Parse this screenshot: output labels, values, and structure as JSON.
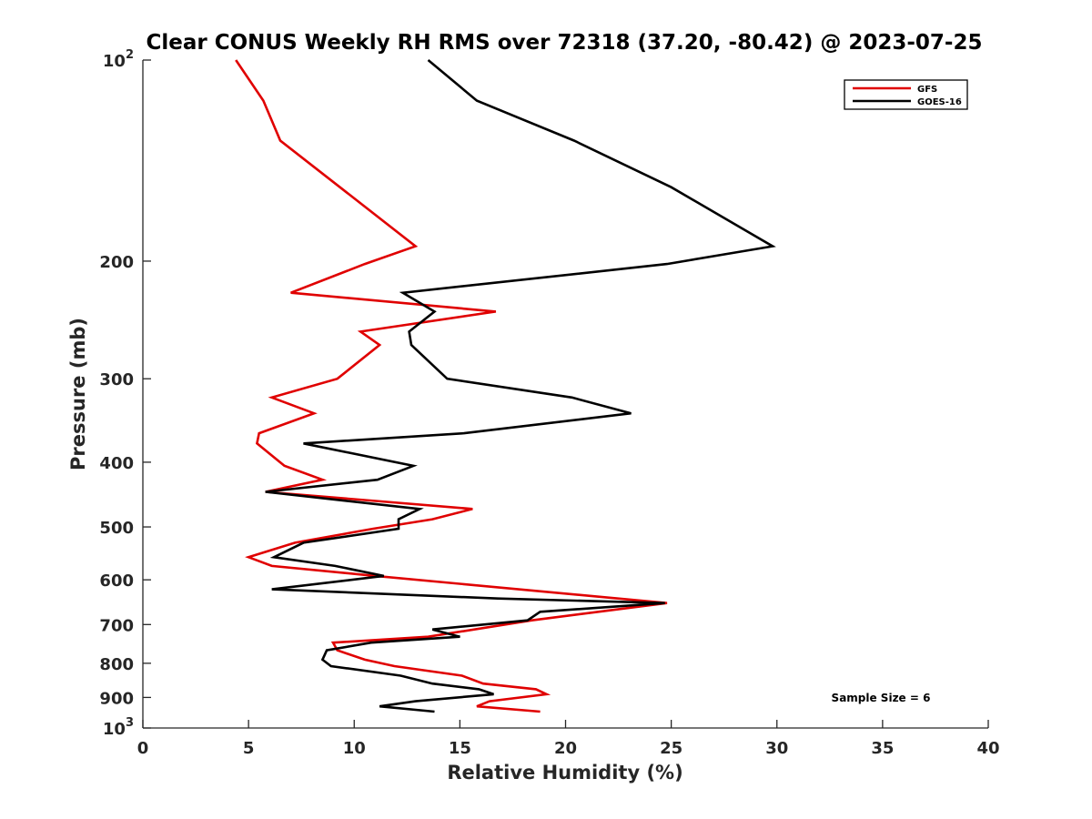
{
  "chart_data": {
    "type": "line",
    "title": "Clear CONUS Weekly RH RMS over 72318 (37.20, -80.42) @ 2023-07-25",
    "xlabel": "Relative Humidity (%)",
    "ylabel": "Pressure (mb)",
    "xlim": [
      0,
      40
    ],
    "ylim": [
      100,
      1000
    ],
    "y_scale": "log",
    "y_reversed": true,
    "x_ticks": [
      0,
      5,
      10,
      15,
      20,
      25,
      30,
      35,
      40
    ],
    "x_tick_labels": [
      "0",
      "5",
      "10",
      "15",
      "20",
      "25",
      "30",
      "35",
      "40"
    ],
    "y_ticks": [
      100,
      200,
      300,
      400,
      500,
      600,
      700,
      800,
      900,
      1000
    ],
    "y_tick_labels": [
      {
        "base": "10",
        "exp": "2"
      },
      {
        "base": "200",
        "exp": ""
      },
      {
        "base": "300",
        "exp": ""
      },
      {
        "base": "400",
        "exp": ""
      },
      {
        "base": "500",
        "exp": ""
      },
      {
        "base": "600",
        "exp": ""
      },
      {
        "base": "700",
        "exp": ""
      },
      {
        "base": "800",
        "exp": ""
      },
      {
        "base": "900",
        "exp": ""
      },
      {
        "base": "10",
        "exp": "3"
      }
    ],
    "grid": false,
    "legend_position": "top-right",
    "annotation": "Sample Size = 6",
    "series": [
      {
        "name": "GFS",
        "color": "#e00000",
        "points": [
          [
            4.4,
            100
          ],
          [
            5.7,
            115
          ],
          [
            6.5,
            132
          ],
          [
            12.9,
            190
          ],
          [
            10.5,
            202
          ],
          [
            7.0,
            223
          ],
          [
            16.7,
            238
          ],
          [
            10.3,
            255
          ],
          [
            11.2,
            267
          ],
          [
            9.2,
            300
          ],
          [
            6.1,
            320
          ],
          [
            8.1,
            338
          ],
          [
            5.5,
            362
          ],
          [
            5.4,
            375
          ],
          [
            6.7,
            405
          ],
          [
            8.5,
            425
          ],
          [
            5.8,
            443
          ],
          [
            15.6,
            470
          ],
          [
            13.7,
            487
          ],
          [
            10.9,
            503
          ],
          [
            7.2,
            528
          ],
          [
            5.0,
            555
          ],
          [
            6.1,
            572
          ],
          [
            11.0,
            592
          ],
          [
            24.8,
            650
          ],
          [
            18.4,
            690
          ],
          [
            13.5,
            730
          ],
          [
            9.0,
            745
          ],
          [
            9.2,
            765
          ],
          [
            10.5,
            790
          ],
          [
            11.9,
            808
          ],
          [
            15.1,
            835
          ],
          [
            16.1,
            858
          ],
          [
            18.6,
            875
          ],
          [
            19.1,
            890
          ],
          [
            16.4,
            912
          ],
          [
            15.8,
            928
          ],
          [
            18.8,
            945
          ]
        ]
      },
      {
        "name": "GOES-16",
        "color": "#000000",
        "points": [
          [
            13.5,
            100
          ],
          [
            15.8,
            115
          ],
          [
            20.4,
            132
          ],
          [
            25.0,
            155
          ],
          [
            29.8,
            190
          ],
          [
            24.8,
            202
          ],
          [
            12.3,
            223
          ],
          [
            13.8,
            238
          ],
          [
            12.6,
            255
          ],
          [
            12.7,
            267
          ],
          [
            14.4,
            300
          ],
          [
            20.3,
            320
          ],
          [
            23.1,
            338
          ],
          [
            15.2,
            362
          ],
          [
            7.6,
            375
          ],
          [
            12.8,
            405
          ],
          [
            11.1,
            425
          ],
          [
            5.8,
            443
          ],
          [
            13.1,
            470
          ],
          [
            12.1,
            487
          ],
          [
            12.1,
            503
          ],
          [
            7.6,
            528
          ],
          [
            6.2,
            555
          ],
          [
            9.1,
            572
          ],
          [
            11.4,
            592
          ],
          [
            6.1,
            620
          ],
          [
            16.8,
            640
          ],
          [
            24.7,
            650
          ],
          [
            18.8,
            670
          ],
          [
            18.2,
            690
          ],
          [
            13.7,
            712
          ],
          [
            15.0,
            730
          ],
          [
            10.8,
            745
          ],
          [
            8.7,
            765
          ],
          [
            8.5,
            790
          ],
          [
            8.9,
            808
          ],
          [
            12.2,
            835
          ],
          [
            13.7,
            858
          ],
          [
            15.9,
            875
          ],
          [
            16.6,
            890
          ],
          [
            12.9,
            912
          ],
          [
            11.2,
            928
          ],
          [
            13.8,
            945
          ]
        ]
      }
    ]
  }
}
